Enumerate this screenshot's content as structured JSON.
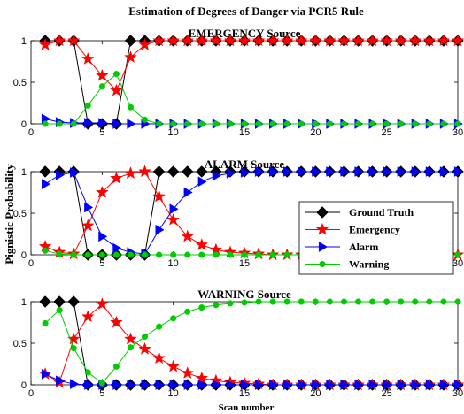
{
  "chart_data": {
    "type": "line",
    "title": "Estimation of Degrees of Danger via PCR5 Rule",
    "ylabel": "Pignistic Probability",
    "xlabel": "Scan number",
    "xlim": [
      0,
      30
    ],
    "ylim": [
      0,
      1
    ],
    "xticks": [
      "0",
      "5",
      "10",
      "15",
      "20",
      "25",
      "30"
    ],
    "yticks": [
      "0",
      "0.5",
      "1"
    ],
    "x": [
      1,
      2,
      3,
      4,
      5,
      6,
      7,
      8,
      9,
      10,
      11,
      12,
      13,
      14,
      15,
      16,
      17,
      18,
      19,
      20,
      21,
      22,
      23,
      24,
      25,
      26,
      27,
      28,
      29,
      30
    ],
    "legend": {
      "placement": "inside-right of middle panel",
      "entries": [
        "Ground Truth",
        "Emergency",
        "Alarm",
        "Warning"
      ]
    },
    "series_styles": [
      {
        "color": "#000000",
        "marker": "diamond"
      },
      {
        "color": "#ff0000",
        "marker": "star"
      },
      {
        "color": "#0000ff",
        "marker": "triangle-right"
      },
      {
        "color": "#00cc00",
        "marker": "circle"
      }
    ],
    "panels": [
      {
        "subtitle": "EMERGENCY Source",
        "series": [
          {
            "name": "Ground Truth",
            "values": [
              1,
              1,
              1,
              0,
              0,
              0,
              1,
              1,
              1,
              1,
              1,
              1,
              1,
              1,
              1,
              1,
              1,
              1,
              1,
              1,
              1,
              1,
              1,
              1,
              1,
              1,
              1,
              1,
              1,
              1
            ]
          },
          {
            "name": "Emergency",
            "values": [
              0.95,
              1,
              1,
              0.78,
              0.58,
              0.4,
              0.8,
              0.95,
              1,
              1,
              1,
              1,
              1,
              1,
              1,
              1,
              1,
              1,
              1,
              1,
              1,
              1,
              1,
              1,
              1,
              1,
              1,
              1,
              1,
              1
            ]
          },
          {
            "name": "Alarm",
            "values": [
              0.06,
              0.02,
              0.01,
              0.01,
              0.01,
              0.0,
              0.0,
              0.0,
              0.0,
              0.0,
              0.0,
              0.0,
              0.0,
              0.0,
              0.0,
              0.0,
              0.0,
              0.0,
              0.0,
              0.0,
              0.0,
              0.0,
              0.0,
              0.0,
              0.0,
              0.0,
              0.0,
              0.0,
              0.0,
              0.0
            ]
          },
          {
            "name": "Warning",
            "values": [
              0.0,
              0.0,
              0.0,
              0.22,
              0.45,
              0.6,
              0.2,
              0.05,
              0.0,
              0.0,
              0.0,
              0.0,
              0.0,
              0.0,
              0.0,
              0.0,
              0.0,
              0.0,
              0.0,
              0.0,
              0.0,
              0.0,
              0.0,
              0.0,
              0.0,
              0.0,
              0.0,
              0.0,
              0.0,
              0.0
            ]
          }
        ]
      },
      {
        "subtitle": "ALARM Source",
        "series": [
          {
            "name": "Ground Truth",
            "values": [
              1,
              1,
              1,
              0,
              0,
              0,
              0,
              0,
              1,
              1,
              1,
              1,
              1,
              1,
              1,
              1,
              1,
              1,
              1,
              1,
              1,
              1,
              1,
              1,
              1,
              1,
              1,
              1,
              1,
              1
            ]
          },
          {
            "name": "Emergency",
            "values": [
              0.1,
              0.03,
              0.01,
              0.35,
              0.75,
              0.92,
              0.98,
              1,
              0.7,
              0.42,
              0.22,
              0.12,
              0.06,
              0.03,
              0.02,
              0.01,
              0.0,
              0.0,
              0.0,
              0.0,
              0.0,
              0.0,
              0.0,
              0.0,
              0.0,
              0.0,
              0.0,
              0.0,
              0.0,
              0.0
            ]
          },
          {
            "name": "Alarm",
            "values": [
              0.85,
              0.96,
              0.99,
              0.57,
              0.22,
              0.08,
              0.03,
              0.01,
              0.3,
              0.55,
              0.75,
              0.88,
              0.95,
              0.98,
              0.99,
              1,
              1,
              1,
              1,
              1,
              1,
              1,
              1,
              1,
              1,
              1,
              1,
              1,
              1,
              1
            ]
          },
          {
            "name": "Warning",
            "values": [
              0.05,
              0.01,
              0.0,
              0.0,
              0.0,
              0.0,
              0.0,
              0.0,
              0.0,
              0.0,
              0.0,
              0.0,
              0.0,
              0.0,
              0.0,
              0.0,
              0.0,
              0.0,
              0.0,
              0.0,
              0.0,
              0.0,
              0.0,
              0.0,
              0.0,
              0.0,
              0.0,
              0.0,
              0.0,
              0.0
            ]
          }
        ]
      },
      {
        "subtitle": "WARNING Source",
        "series": [
          {
            "name": "Ground Truth",
            "values": [
              1,
              1,
              1,
              0,
              0,
              0,
              0,
              0,
              0,
              0,
              0,
              0,
              0,
              0,
              0,
              0,
              0,
              0,
              0,
              0,
              0,
              0,
              0,
              0,
              0,
              0,
              0,
              0,
              0,
              0
            ]
          },
          {
            "name": "Emergency",
            "values": [
              0.13,
              0.03,
              0.55,
              0.82,
              0.97,
              0.75,
              0.55,
              0.43,
              0.32,
              0.22,
              0.14,
              0.08,
              0.05,
              0.03,
              0.02,
              0.01,
              0.0,
              0.0,
              0.0,
              0.0,
              0.0,
              0.0,
              0.0,
              0.0,
              0.0,
              0.0,
              0.0,
              0.0,
              0.0,
              0.0
            ]
          },
          {
            "name": "Alarm",
            "values": [
              0.13,
              0.05,
              0.01,
              0.0,
              0.0,
              0.0,
              0.0,
              0.0,
              0.0,
              0.0,
              0.0,
              0.0,
              0.0,
              0.0,
              0.0,
              0.0,
              0.0,
              0.0,
              0.0,
              0.0,
              0.0,
              0.0,
              0.0,
              0.0,
              0.0,
              0.0,
              0.0,
              0.0,
              0.0,
              0.0
            ]
          },
          {
            "name": "Warning",
            "values": [
              0.74,
              0.9,
              0.44,
              0.15,
              0.02,
              0.22,
              0.45,
              0.58,
              0.7,
              0.8,
              0.88,
              0.93,
              0.96,
              0.98,
              0.99,
              1,
              1,
              1,
              1,
              1,
              1,
              1,
              1,
              1,
              1,
              1,
              1,
              1,
              1,
              1
            ]
          }
        ]
      }
    ]
  }
}
